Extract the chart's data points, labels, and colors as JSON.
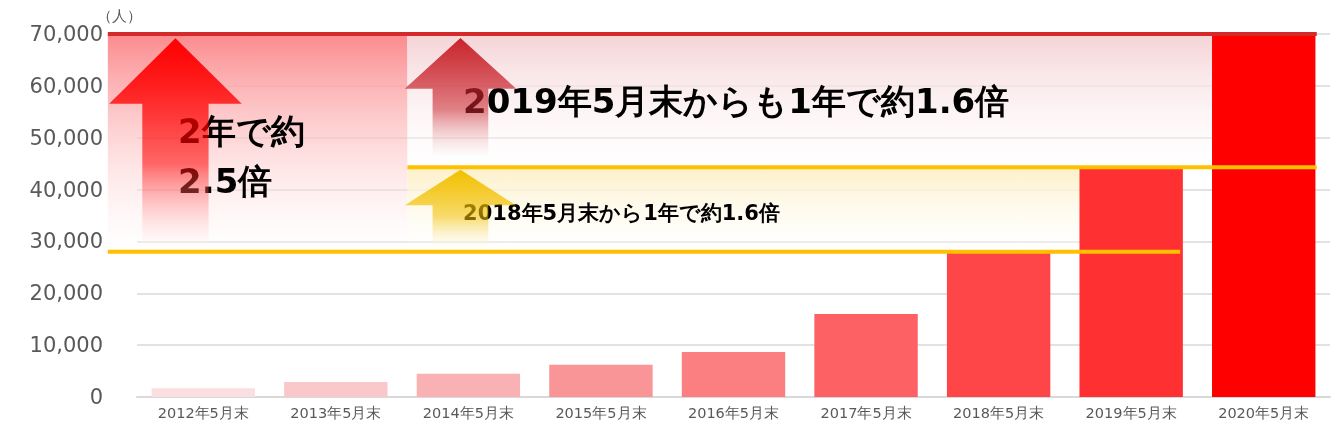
{
  "chart_data": {
    "type": "bar",
    "ylabel": "（人）",
    "categories": [
      "2012年5月末",
      "2013年5月末",
      "2014年5月末",
      "2015年5月末",
      "2016年5月末",
      "2017年5月末",
      "2018年5月末",
      "2019年5月末",
      "2020年5月末"
    ],
    "values": [
      1700,
      2900,
      4500,
      6200,
      8700,
      16000,
      27800,
      44000,
      70000
    ],
    "colors": [
      "#fbdfe0",
      "#fac8ca",
      "#fab1b3",
      "#fa9597",
      "#fb7e80",
      "#fd6163",
      "#fe4547",
      "#ff3032",
      "#ff0000"
    ],
    "ylim": [
      0,
      70000
    ],
    "yticks": [
      0,
      {
        "value": 10000,
        "label": "10,000"
      },
      {
        "value": 20000,
        "label": "20,000"
      },
      {
        "value": 30000,
        "label": "30,000"
      },
      {
        "value": 40000,
        "label": "40,000"
      },
      {
        "value": 50000,
        "label": "50,000"
      },
      {
        "value": 60000,
        "label": "60,000"
      },
      {
        "value": 70000,
        "label": "70,000"
      }
    ],
    "grid": "y",
    "ref_lines": [
      {
        "axis": "y",
        "value": 28000,
        "label": null,
        "color": "#ffc000"
      },
      {
        "axis": "y",
        "value": 44300,
        "label": null,
        "color": "#ffc000"
      },
      {
        "axis": "y",
        "value": 70000,
        "label": null,
        "color": "#d42a2a"
      }
    ],
    "bands": [
      {
        "axis": "y",
        "from": 28000,
        "to": 70000,
        "label": "2年で約2.5倍",
        "color": "#fb8a8d"
      },
      {
        "axis": "y",
        "from": 44300,
        "to": 70000,
        "label": "2019年5月末からも1年で約1.6倍",
        "color": "#f5d3d6"
      },
      {
        "axis": "y",
        "from": 28000,
        "to": 44300,
        "label": "2018年5月末から1年で約1.6倍",
        "color": "#fdf0c8"
      }
    ]
  }
}
